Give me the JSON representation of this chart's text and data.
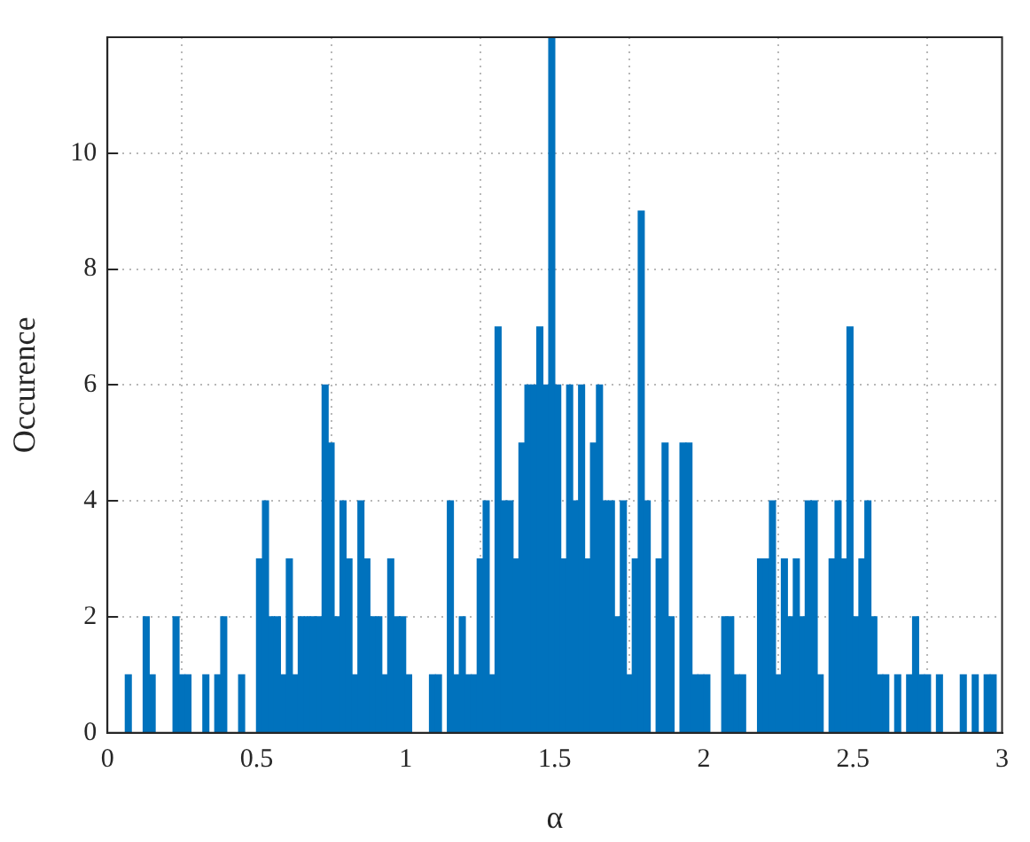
{
  "chart_data": {
    "type": "histogram",
    "xlabel": "α",
    "ylabel": "Occurence",
    "color": "#0072bd",
    "bins": [
      0,
      0.02,
      0.04,
      0.06,
      0.08,
      0.1,
      0.12,
      0.14,
      0.16,
      0.18,
      0.2,
      0.22,
      0.24,
      0.26,
      0.28,
      0.3,
      0.32,
      0.34,
      0.36,
      0.38,
      0.4,
      0.42,
      0.44,
      0.46,
      0.48,
      0.5,
      0.52,
      0.54,
      0.56,
      0.58,
      0.6,
      0.62,
      0.64,
      0.66,
      0.68,
      0.7,
      0.72,
      0.74,
      0.76,
      0.78,
      0.8,
      0.82,
      0.84,
      0.86,
      0.88,
      0.9,
      0.92,
      0.94,
      0.96,
      0.98,
      1,
      1.02,
      1.04,
      1.06,
      1.08,
      1.1,
      1.12,
      1.14,
      1.16,
      1.18,
      1.2,
      1.22,
      1.24,
      1.26,
      1.28,
      1.3,
      1.32,
      1.34,
      1.36,
      1.38,
      1.4,
      1.42,
      1.44,
      1.46,
      1.48,
      1.5,
      1.52,
      1.54,
      1.56,
      1.58,
      1.6,
      1.62,
      1.64,
      1.66,
      1.68,
      1.7,
      1.72,
      1.74,
      1.76,
      1.78,
      1.8,
      1.82,
      1.84,
      1.86,
      1.88,
      1.9,
      1.92,
      1.94,
      1.96,
      1.98,
      2,
      2.02,
      2.04,
      2.06,
      2.08,
      2.1,
      2.12,
      2.14,
      2.16,
      2.18,
      2.2,
      2.22,
      2.24,
      2.26,
      2.28,
      2.3,
      2.32,
      2.34,
      2.36,
      2.38,
      2.4,
      2.42,
      2.44,
      2.46,
      2.48,
      2.5,
      2.52,
      2.54,
      2.56,
      2.58,
      2.6,
      2.62,
      2.64,
      2.66,
      2.68,
      2.7,
      2.72,
      2.74,
      2.76,
      2.78,
      2.8,
      2.82,
      2.84,
      2.86,
      2.88,
      2.9,
      2.92,
      2.94,
      2.96,
      2.98,
      3
    ],
    "values": [
      0,
      0,
      0,
      1,
      0,
      0,
      2,
      1,
      0,
      0,
      0,
      2,
      1,
      1,
      0,
      0,
      1,
      0,
      1,
      2,
      0,
      0,
      1,
      0,
      0,
      3,
      4,
      2,
      2,
      1,
      3,
      1,
      2,
      2,
      2,
      2,
      6,
      5,
      2,
      4,
      3,
      1,
      4,
      3,
      2,
      2,
      1,
      3,
      2,
      2,
      1,
      0,
      0,
      0,
      1,
      1,
      0,
      4,
      1,
      2,
      1,
      1,
      3,
      4,
      1,
      7,
      4,
      4,
      3,
      5,
      6,
      6,
      7,
      6,
      12,
      6,
      3,
      6,
      4,
      6,
      3,
      5,
      6,
      4,
      4,
      2,
      4,
      1,
      3,
      9,
      4,
      0,
      3,
      5,
      2,
      0,
      5,
      5,
      1,
      1,
      1,
      0,
      0,
      2,
      2,
      1,
      1,
      0,
      0,
      3,
      3,
      4,
      1,
      3,
      2,
      3,
      2,
      4,
      4,
      1,
      0,
      3,
      4,
      3,
      7,
      2,
      3,
      4,
      2,
      1,
      1,
      0,
      1,
      0,
      1,
      2,
      1,
      1,
      0,
      1,
      0,
      0,
      0,
      1,
      0,
      1,
      0,
      1,
      1,
      0
    ],
    "xlim": [
      0,
      3
    ],
    "xticks": [
      0,
      0.5,
      1,
      1.5,
      2,
      2.5,
      3
    ],
    "ylim": [
      0,
      12
    ],
    "yticks": [
      0,
      2,
      4,
      6,
      8,
      10
    ],
    "grid": true
  }
}
